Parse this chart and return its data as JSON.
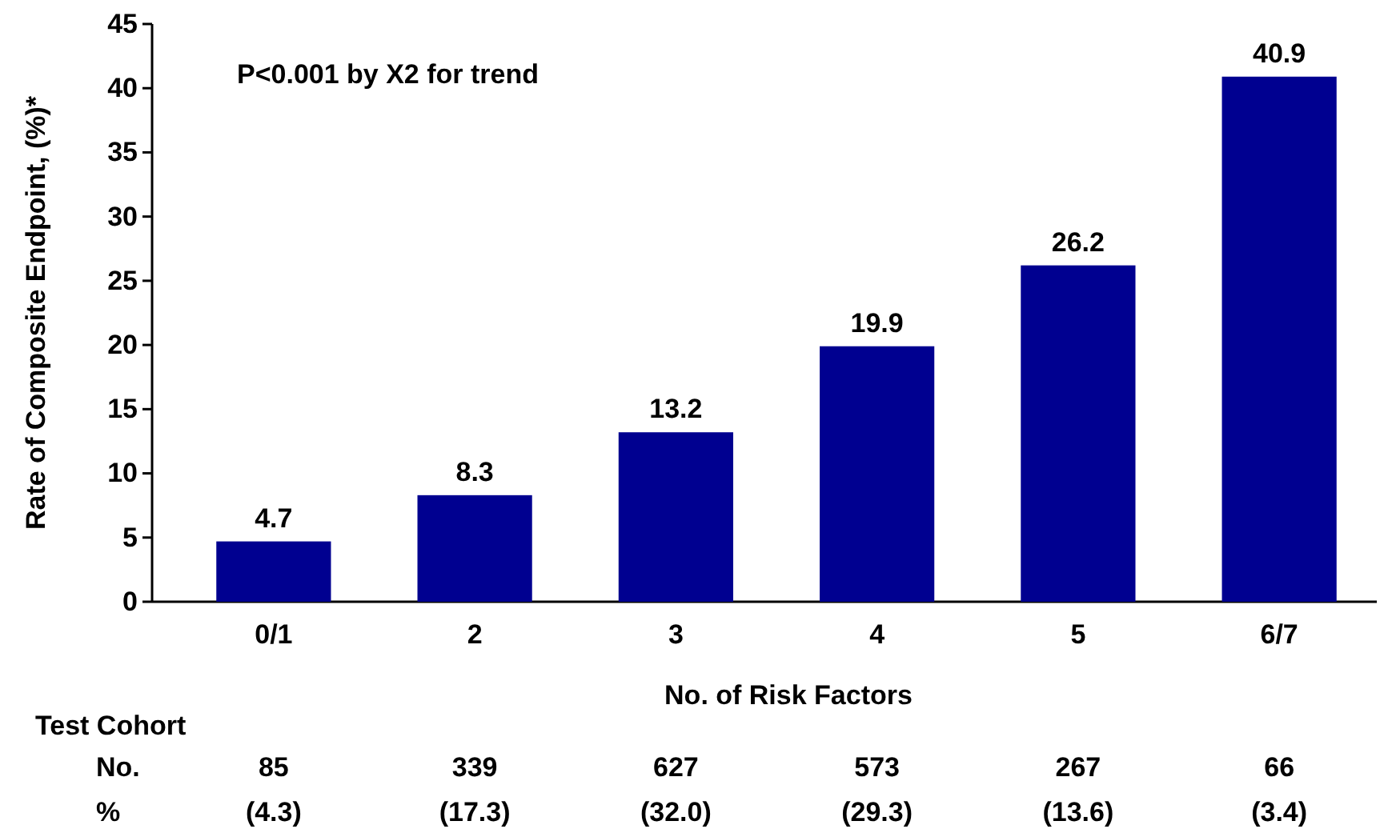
{
  "chart_data": {
    "type": "bar",
    "xlabel": "No. of Risk Factors",
    "ylabel": "Rate of Composite Endpoint, (%)*",
    "categories": [
      "0/1",
      "2",
      "3",
      "4",
      "5",
      "6/7"
    ],
    "values": [
      4.7,
      8.3,
      13.2,
      19.9,
      26.2,
      40.9
    ],
    "color": "#000090",
    "ylim": [
      0,
      45
    ],
    "yticks": [
      0,
      5,
      10,
      15,
      20,
      25,
      30,
      35,
      40,
      45
    ],
    "data_labels": true,
    "annotations": [
      "P<0.001 by X2 for trend",
      "Test Cohort",
      "No.",
      "85",
      "339",
      "627",
      "573",
      "267",
      "66",
      "%",
      "(4.3)",
      "(17.3)",
      "(32.0)",
      "(29.3)",
      "(13.6)",
      "(3.4)"
    ]
  }
}
